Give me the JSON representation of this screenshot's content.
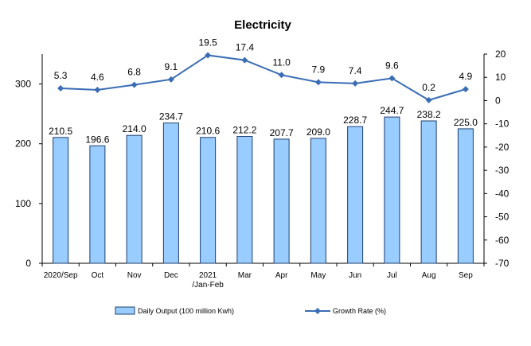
{
  "chart_data": {
    "type": "bar+line",
    "title": "Electricity",
    "categories": [
      [
        "2020/Sep"
      ],
      [
        "Oct"
      ],
      [
        "Nov"
      ],
      [
        "Dec"
      ],
      [
        "2021",
        "/Jan-Feb"
      ],
      [
        "Mar"
      ],
      [
        "Apr"
      ],
      [
        "May"
      ],
      [
        "Jun"
      ],
      [
        "Jul"
      ],
      [
        "Aug"
      ],
      [
        "Sep"
      ]
    ],
    "series": [
      {
        "name": "Daily Output (100 million Kwh)",
        "type": "bar",
        "axis": "left",
        "color": "#99ccff",
        "values": [
          210.5,
          196.6,
          214.0,
          234.7,
          210.6,
          212.2,
          207.7,
          209.0,
          228.7,
          244.7,
          238.2,
          225.0
        ],
        "labels": [
          "210.5",
          "196.6",
          "214.0",
          "234.7",
          "210.6",
          "212.2",
          "207.7",
          "209.0",
          "228.7",
          "244.7",
          "238.2",
          "225.0"
        ]
      },
      {
        "name": "Growth Rate (%)",
        "type": "line",
        "axis": "right",
        "color": "#3a6db5",
        "values": [
          5.3,
          4.6,
          6.8,
          9.1,
          19.5,
          17.4,
          11.0,
          7.9,
          7.4,
          9.6,
          0.2,
          4.9
        ],
        "labels": [
          "5.3",
          "4.6",
          "6.8",
          "9.1",
          "19.5",
          "17.4",
          "11.0",
          "7.9",
          "7.4",
          "9.6",
          "0.2",
          "4.9"
        ]
      }
    ],
    "y_left": {
      "ylim": [
        0,
        350
      ],
      "ticks": [
        "0",
        "100",
        "200",
        "300"
      ],
      "tick_values": [
        0,
        100,
        200,
        300
      ]
    },
    "y_right": {
      "ylim": [
        -70,
        20
      ],
      "ticks": [
        "20",
        "10",
        "0",
        "-10",
        "-20",
        "-30",
        "-40",
        "-50",
        "-60",
        "-70"
      ],
      "tick_values": [
        20,
        10,
        0,
        -10,
        -20,
        -30,
        -40,
        -50,
        -60,
        -70
      ]
    },
    "legend": "bottom",
    "grid": false
  }
}
